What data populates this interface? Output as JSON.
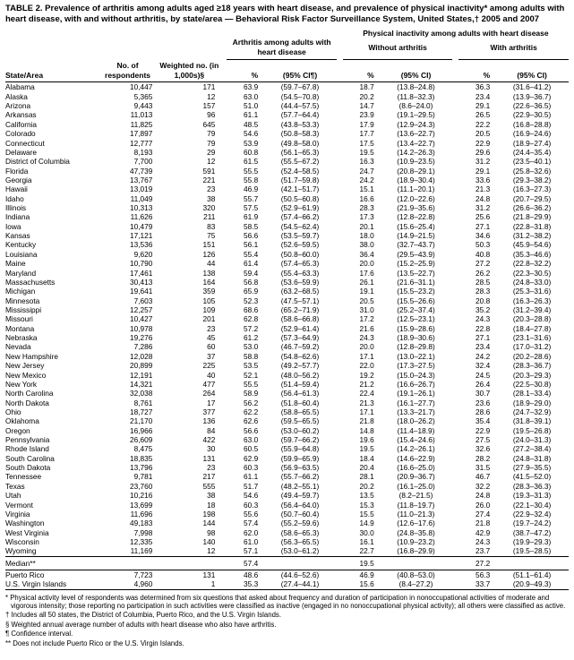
{
  "title": "TABLE 2.  Prevalence of arthritis among adults aged ≥18 years with heart disease, and prevalence of physical inactivity* among adults with heart disease, with and without arthritis, by state/area — Behavioral Risk Factor Surveillance System, United States,† 2005 and 2007",
  "col_headers": {
    "phys_group": "Physical inactivity among adults with heart disease",
    "arth_group": "Arthritis among adults with heart disease",
    "without": "Without arthritis",
    "with": "With arthritis",
    "state": "State/Area",
    "n": "No. of respondents",
    "w": "Weighted no. (in 1,000s)§",
    "pct": "%",
    "ci": "(95% CI¶)",
    "ci2": "(95% CI)"
  },
  "median_label": "Median**",
  "median": {
    "pct1": "57.4",
    "pct2": "19.5",
    "pct3": "27.2"
  },
  "rows": [
    {
      "s": "Alabama",
      "n": "10,447",
      "w": "171",
      "p1": "63.9",
      "c1": "(59.7–67.8)",
      "p2": "18.7",
      "c2": "(13.8–24.8)",
      "p3": "36.3",
      "c3": "(31.6–41.2)"
    },
    {
      "s": "Alaska",
      "n": "5,365",
      "w": "12",
      "p1": "63.0",
      "c1": "(54.5–70.8)",
      "p2": "20.2",
      "c2": "(11.8–32.3)",
      "p3": "23.4",
      "c3": "(13.9–36.7)"
    },
    {
      "s": "Arizona",
      "n": "9,443",
      "w": "157",
      "p1": "51.0",
      "c1": "(44.4–57.5)",
      "p2": "14.7",
      "c2": "(8.6–24.0)",
      "p3": "29.1",
      "c3": "(22.6–36.5)"
    },
    {
      "s": "Arkansas",
      "n": "11,013",
      "w": "96",
      "p1": "61.1",
      "c1": "(57.7–64.4)",
      "p2": "23.9",
      "c2": "(19.1–29.5)",
      "p3": "26.5",
      "c3": "(22.9–30.5)"
    },
    {
      "s": "California",
      "n": "11,825",
      "w": "645",
      "p1": "48.5",
      "c1": "(43.8–53.3)",
      "p2": "17.9",
      "c2": "(12.9–24.3)",
      "p3": "22.2",
      "c3": "(16.8–28.8)"
    },
    {
      "s": "Colorado",
      "n": "17,897",
      "w": "79",
      "p1": "54.6",
      "c1": "(50.8–58.3)",
      "p2": "17.7",
      "c2": "(13.6–22.7)",
      "p3": "20.5",
      "c3": "(16.9–24.6)"
    },
    {
      "s": "Connecticut",
      "n": "12,777",
      "w": "79",
      "p1": "53.9",
      "c1": "(49.8–58.0)",
      "p2": "17.5",
      "c2": "(13.4–22.7)",
      "p3": "22.9",
      "c3": "(18.9–27.4)"
    },
    {
      "s": "Delaware",
      "n": "8,193",
      "w": "29",
      "p1": "60.8",
      "c1": "(56.1–65.3)",
      "p2": "19.5",
      "c2": "(14.2–26.3)",
      "p3": "29.6",
      "c3": "(24.4–35.4)"
    },
    {
      "s": "District of Columbia",
      "n": "7,700",
      "w": "12",
      "p1": "61.5",
      "c1": "(55.5–67.2)",
      "p2": "16.3",
      "c2": "(10.9–23.5)",
      "p3": "31.2",
      "c3": "(23.5–40.1)"
    },
    {
      "s": "Florida",
      "n": "47,739",
      "w": "591",
      "p1": "55.5",
      "c1": "(52.4–58.5)",
      "p2": "24.7",
      "c2": "(20.8–29.1)",
      "p3": "29.1",
      "c3": "(25.8–32.6)"
    },
    {
      "s": "Georgia",
      "n": "13,767",
      "w": "221",
      "p1": "55.8",
      "c1": "(51.7–59.8)",
      "p2": "24.2",
      "c2": "(18.9–30.4)",
      "p3": "33.6",
      "c3": "(29.3–38.2)"
    },
    {
      "s": "Hawaii",
      "n": "13,019",
      "w": "23",
      "p1": "46.9",
      "c1": "(42.1–51.7)",
      "p2": "15.1",
      "c2": "(11.1–20.1)",
      "p3": "21.3",
      "c3": "(16.3–27.3)"
    },
    {
      "s": "Idaho",
      "n": "11,049",
      "w": "38",
      "p1": "55.7",
      "c1": "(50.5–60.8)",
      "p2": "16.6",
      "c2": "(12.0–22.6)",
      "p3": "24.8",
      "c3": "(20.7–29.5)"
    },
    {
      "s": "Illinois",
      "n": "10,313",
      "w": "320",
      "p1": "57.5",
      "c1": "(52.9–61.9)",
      "p2": "28.3",
      "c2": "(21.9–35.6)",
      "p3": "31.2",
      "c3": "(26.6–36.2)"
    },
    {
      "s": "Indiana",
      "n": "11,626",
      "w": "211",
      "p1": "61.9",
      "c1": "(57.4–66.2)",
      "p2": "17.3",
      "c2": "(12.8–22.8)",
      "p3": "25.6",
      "c3": "(21.8–29.9)"
    },
    {
      "s": "Iowa",
      "n": "10,479",
      "w": "83",
      "p1": "58.5",
      "c1": "(54.5–62.4)",
      "p2": "20.1",
      "c2": "(15.6–25.4)",
      "p3": "27.1",
      "c3": "(22.8–31.8)"
    },
    {
      "s": "Kansas",
      "n": "17,121",
      "w": "75",
      "p1": "56.6",
      "c1": "(53.5–59.7)",
      "p2": "18.0",
      "c2": "(14.9–21.5)",
      "p3": "34.6",
      "c3": "(31.2–38.2)"
    },
    {
      "s": "Kentucky",
      "n": "13,536",
      "w": "151",
      "p1": "56.1",
      "c1": "(52.6–59.5)",
      "p2": "38.0",
      "c2": "(32.7–43.7)",
      "p3": "50.3",
      "c3": "(45.9–54.6)"
    },
    {
      "s": "Louisiana",
      "n": "9,620",
      "w": "126",
      "p1": "55.4",
      "c1": "(50.8–60.0)",
      "p2": "36.4",
      "c2": "(29.5–43.9)",
      "p3": "40.8",
      "c3": "(35.3–46.6)"
    },
    {
      "s": "Maine",
      "n": "10,790",
      "w": "44",
      "p1": "61.4",
      "c1": "(57.4–65.3)",
      "p2": "20.0",
      "c2": "(15.2–25.9)",
      "p3": "27.2",
      "c3": "(22.8–32.2)"
    },
    {
      "s": "Maryland",
      "n": "17,461",
      "w": "138",
      "p1": "59.4",
      "c1": "(55.4–63.3)",
      "p2": "17.6",
      "c2": "(13.5–22.7)",
      "p3": "26.2",
      "c3": "(22.3–30.5)"
    },
    {
      "s": "Massachusetts",
      "n": "30,413",
      "w": "164",
      "p1": "56.8",
      "c1": "(53.6–59.9)",
      "p2": "26.1",
      "c2": "(21.6–31.1)",
      "p3": "28.5",
      "c3": "(24.8–33.0)"
    },
    {
      "s": "Michigan",
      "n": "19,641",
      "w": "359",
      "p1": "65.9",
      "c1": "(63.2–68.5)",
      "p2": "19.1",
      "c2": "(15.5–23.2)",
      "p3": "28.3",
      "c3": "(25.3–31.6)"
    },
    {
      "s": "Minnesota",
      "n": "7,603",
      "w": "105",
      "p1": "52.3",
      "c1": "(47.5–57.1)",
      "p2": "20.5",
      "c2": "(15.5–26.6)",
      "p3": "20.8",
      "c3": "(16.3–26.3)"
    },
    {
      "s": "Mississippi",
      "n": "12,257",
      "w": "109",
      "p1": "68.6",
      "c1": "(65.2–71.9)",
      "p2": "31.0",
      "c2": "(25.2–37.4)",
      "p3": "35.2",
      "c3": "(31.2–39.4)"
    },
    {
      "s": "Missouri",
      "n": "10,427",
      "w": "201",
      "p1": "62.8",
      "c1": "(58.6–66.8)",
      "p2": "17.2",
      "c2": "(12.5–23.1)",
      "p3": "24.3",
      "c3": "(20.3–28.8)"
    },
    {
      "s": "Montana",
      "n": "10,978",
      "w": "23",
      "p1": "57.2",
      "c1": "(52.9–61.4)",
      "p2": "21.6",
      "c2": "(15.9–28.6)",
      "p3": "22.8",
      "c3": "(18.4–27.8)"
    },
    {
      "s": "Nebraska",
      "n": "19,276",
      "w": "45",
      "p1": "61.2",
      "c1": "(57.3–64.9)",
      "p2": "24.3",
      "c2": "(18.9–30.6)",
      "p3": "27.1",
      "c3": "(23.1–31.6)"
    },
    {
      "s": "Nevada",
      "n": "7,286",
      "w": "60",
      "p1": "53.0",
      "c1": "(46.7–59.2)",
      "p2": "20.0",
      "c2": "(12.8–29.8)",
      "p3": "23.4",
      "c3": "(17.0–31.2)"
    },
    {
      "s": "New Hampshire",
      "n": "12,028",
      "w": "37",
      "p1": "58.8",
      "c1": "(54.8–62.6)",
      "p2": "17.1",
      "c2": "(13.0–22.1)",
      "p3": "24.2",
      "c3": "(20.2–28.6)"
    },
    {
      "s": "New Jersey",
      "n": "20,899",
      "w": "225",
      "p1": "53.5",
      "c1": "(49.2–57.7)",
      "p2": "22.0",
      "c2": "(17.3–27.5)",
      "p3": "32.4",
      "c3": "(28.3–36.7)"
    },
    {
      "s": "New Mexico",
      "n": "12,191",
      "w": "40",
      "p1": "52.1",
      "c1": "(48.0–56.2)",
      "p2": "19.2",
      "c2": "(15.0–24.3)",
      "p3": "24.5",
      "c3": "(20.3–29.3)"
    },
    {
      "s": "New York",
      "n": "14,321",
      "w": "477",
      "p1": "55.5",
      "c1": "(51.4–59.4)",
      "p2": "21.2",
      "c2": "(16.6–26.7)",
      "p3": "26.4",
      "c3": "(22.5–30.8)"
    },
    {
      "s": "North Carolina",
      "n": "32,038",
      "w": "264",
      "p1": "58.9",
      "c1": "(56.4–61.3)",
      "p2": "22.4",
      "c2": "(19.1–26.1)",
      "p3": "30.7",
      "c3": "(28.1–33.4)"
    },
    {
      "s": "North Dakota",
      "n": "8,761",
      "w": "17",
      "p1": "56.2",
      "c1": "(51.8–60.4)",
      "p2": "21.3",
      "c2": "(16.1–27.7)",
      "p3": "23.6",
      "c3": "(18.9–29.0)"
    },
    {
      "s": "Ohio",
      "n": "18,727",
      "w": "377",
      "p1": "62.2",
      "c1": "(58.8–65.5)",
      "p2": "17.1",
      "c2": "(13.3–21.7)",
      "p3": "28.6",
      "c3": "(24.7–32.9)"
    },
    {
      "s": "Oklahoma",
      "n": "21,170",
      "w": "136",
      "p1": "62.6",
      "c1": "(59.5–65.5)",
      "p2": "21.8",
      "c2": "(18.0–26.2)",
      "p3": "35.4",
      "c3": "(31.8–39.1)"
    },
    {
      "s": "Oregon",
      "n": "16,966",
      "w": "84",
      "p1": "56.6",
      "c1": "(53.0–60.2)",
      "p2": "14.8",
      "c2": "(11.4–18.9)",
      "p3": "22.9",
      "c3": "(19.5–26.8)"
    },
    {
      "s": "Pennsylvania",
      "n": "26,609",
      "w": "422",
      "p1": "63.0",
      "c1": "(59.7–66.2)",
      "p2": "19.6",
      "c2": "(15.4–24.6)",
      "p3": "27.5",
      "c3": "(24.0–31.3)"
    },
    {
      "s": "Rhode Island",
      "n": "8,475",
      "w": "30",
      "p1": "60.5",
      "c1": "(55.9–64.8)",
      "p2": "19.5",
      "c2": "(14.2–26.1)",
      "p3": "32.6",
      "c3": "(27.2–38.4)"
    },
    {
      "s": "South Carolina",
      "n": "18,835",
      "w": "131",
      "p1": "62.9",
      "c1": "(59.9–65.9)",
      "p2": "18.4",
      "c2": "(14.6–22.9)",
      "p3": "28.2",
      "c3": "(24.8–31.8)"
    },
    {
      "s": "South Dakota",
      "n": "13,796",
      "w": "23",
      "p1": "60.3",
      "c1": "(56.9–63.5)",
      "p2": "20.4",
      "c2": "(16.6–25.0)",
      "p3": "31.5",
      "c3": "(27.9–35.5)"
    },
    {
      "s": "Tennessee",
      "n": "9,781",
      "w": "217",
      "p1": "61.1",
      "c1": "(55.7–66.2)",
      "p2": "28.1",
      "c2": "(20.9–36.7)",
      "p3": "46.7",
      "c3": "(41.5–52.0)"
    },
    {
      "s": "Texas",
      "n": "23,760",
      "w": "555",
      "p1": "51.7",
      "c1": "(48.2–55.1)",
      "p2": "20.2",
      "c2": "(16.1–25.0)",
      "p3": "32.2",
      "c3": "(28.3–36.3)"
    },
    {
      "s": "Utah",
      "n": "10,216",
      "w": "38",
      "p1": "54.6",
      "c1": "(49.4–59.7)",
      "p2": "13.5",
      "c2": "(8.2–21.5)",
      "p3": "24.8",
      "c3": "(19.3–31.3)"
    },
    {
      "s": "Vermont",
      "n": "13,699",
      "w": "18",
      "p1": "60.3",
      "c1": "(56.4–64.0)",
      "p2": "15.3",
      "c2": "(11.8–19.7)",
      "p3": "26.0",
      "c3": "(22.1–30.4)"
    },
    {
      "s": "Virginia",
      "n": "11,696",
      "w": "198",
      "p1": "55.6",
      "c1": "(50.7–60.4)",
      "p2": "15.5",
      "c2": "(11.0–21.3)",
      "p3": "27.4",
      "c3": "(22.9–32.4)"
    },
    {
      "s": "Washington",
      "n": "49,183",
      "w": "144",
      "p1": "57.4",
      "c1": "(55.2–59.6)",
      "p2": "14.9",
      "c2": "(12.6–17.6)",
      "p3": "21.8",
      "c3": "(19.7–24.2)"
    },
    {
      "s": "West Virginia",
      "n": "7,998",
      "w": "98",
      "p1": "62.0",
      "c1": "(58.6–65.3)",
      "p2": "30.0",
      "c2": "(24.8–35.8)",
      "p3": "42.9",
      "c3": "(38.7–47.2)"
    },
    {
      "s": "Wisconsin",
      "n": "12,335",
      "w": "140",
      "p1": "61.0",
      "c1": "(56.3–65.5)",
      "p2": "16.1",
      "c2": "(10.9–23.2)",
      "p3": "24.3",
      "c3": "(19.9–29.3)"
    },
    {
      "s": "Wyoming",
      "n": "11,169",
      "w": "12",
      "p1": "57.1",
      "c1": "(53.0–61.2)",
      "p2": "22.7",
      "c2": "(16.8–29.9)",
      "p3": "23.7",
      "c3": "(19.5–28.5)"
    }
  ],
  "rows2": [
    {
      "s": "Puerto Rico",
      "n": "7,723",
      "w": "131",
      "p1": "48.6",
      "c1": "(44.6–52.6)",
      "p2": "46.9",
      "c2": "(40.8–53.0)",
      "p3": "56.3",
      "c3": "(51.1–61.4)"
    },
    {
      "s": "U.S. Virgin Islands",
      "n": "4,960",
      "w": "1",
      "p1": "35.3",
      "c1": "(27.4–44.1)",
      "p2": "15.6",
      "c2": "(8.4–27.2)",
      "p3": "33.7",
      "c3": "(20.9–49.3)"
    }
  ],
  "footnotes": [
    "* Physical activity level of respondents was determined from six questions that asked about frequency and duration of participation in nonoccupational activities of moderate and vigorous intensity; those reporting no participation in such activities were classified as inactive (engaged in no nonoccupational physical activity); all others were classified as active.",
    "† Includes all 50 states, the District of Columbia, Puerto Rico, and the U.S. Virgin Islands.",
    "§ Weighted annual average number of adults with heart disease who also have arthritis.",
    "¶ Confidence interval.",
    "** Does not include Puerto Rico or the U.S. Virgin Islands."
  ]
}
